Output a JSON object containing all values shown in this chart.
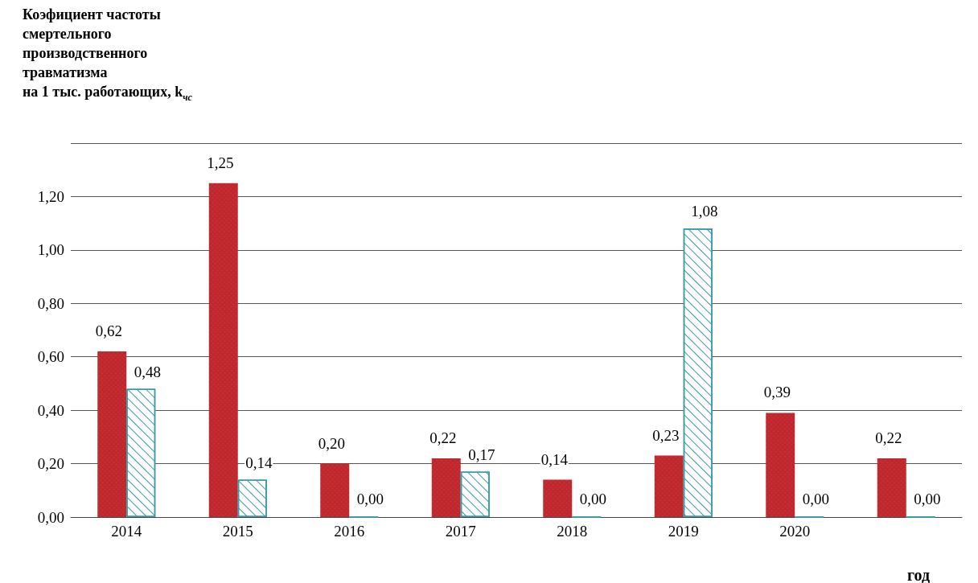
{
  "chart_data": {
    "type": "bar",
    "ylabel": "Коэфициент частоты\nсмертельного\nпроизводственного\nтравматизма\nна 1 тыс. работающих, k$_{чс}$",
    "xlabel": "год",
    "categories": [
      "2014",
      "2015",
      "2016",
      "2017",
      "2018",
      "2019",
      "2020",
      null
    ],
    "series": [
      {
        "color": "#c0272d",
        "values": [
          0.62,
          1.25,
          0.2,
          0.22,
          0.14,
          0.23,
          0.39,
          0.22
        ],
        "value_labels": [
          "0,62",
          "1,25",
          "0,20",
          "0,22",
          "0,14",
          "0,23",
          "0,39",
          "0,22"
        ]
      },
      {
        "color": "#3a9aa8",
        "values": [
          0.48,
          0.14,
          0.0,
          0.17,
          0.0,
          1.08,
          0.0,
          0.0
        ],
        "value_labels": [
          "0,48",
          "0,14",
          "0,00",
          "0,17",
          "0,00",
          "1,08",
          "0,00",
          "0,00"
        ]
      }
    ],
    "ylim": [
      0,
      1.4
    ],
    "yticks": [
      {
        "value": 0,
        "label": "0,00"
      },
      {
        "value": 0.2,
        "label": "0,20"
      },
      {
        "value": 0.4,
        "label": "0,40"
      },
      {
        "value": 0.6,
        "label": "0,60"
      },
      {
        "value": 0.8,
        "label": "0,80"
      },
      {
        "value": 1.0,
        "label": "1,00"
      },
      {
        "value": 1.2,
        "label": "1,20"
      },
      {
        "value": 1.4,
        "label": null
      }
    ],
    "grid": "y"
  }
}
